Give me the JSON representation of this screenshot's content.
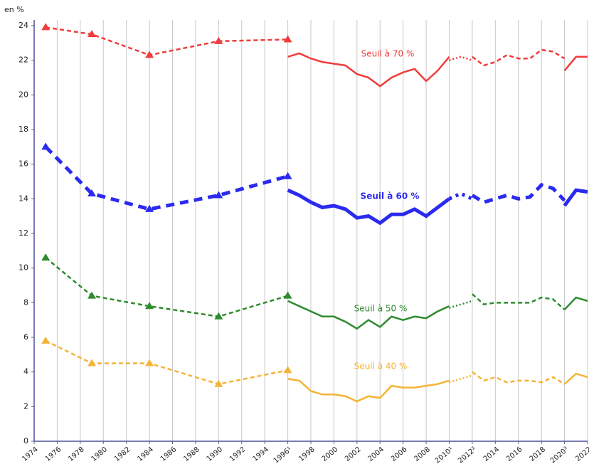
{
  "chart_data": {
    "type": "line",
    "ylabel": "en %",
    "xlim": [
      1974,
      2022
    ],
    "ylim": [
      0,
      24
    ],
    "yticks": [
      0,
      2,
      4,
      6,
      8,
      10,
      12,
      14,
      16,
      18,
      20,
      22,
      24
    ],
    "xticks": [
      1974,
      1976,
      1978,
      1980,
      1982,
      1984,
      1986,
      1988,
      1990,
      1992,
      1994,
      {
        "value": 1996,
        "label": "1996¹"
      },
      1998,
      2000,
      2002,
      2004,
      2006,
      2008,
      {
        "value": 2010,
        "label": "2010¹"
      },
      {
        "value": 2012,
        "label": "2012²"
      },
      2014,
      2016,
      2018,
      {
        "value": 2020,
        "label": "2020³"
      },
      2022
    ],
    "grid": "x",
    "series": [
      {
        "name": "Seuil à 70 %",
        "color": "#f03c3c",
        "width": 2.5,
        "parts": [
          {
            "style": "dashed",
            "markers": true,
            "x": [
              1975,
              1979,
              1984,
              1990,
              1996
            ],
            "values": [
              23.9,
              23.5,
              22.3,
              23.1,
              23.2
            ]
          },
          {
            "style": "solid",
            "x": [
              1996,
              1997,
              1998,
              1999,
              2000,
              2001,
              2002,
              2003,
              2004,
              2005,
              2006,
              2007,
              2008,
              2009,
              2010
            ],
            "values": [
              22.2,
              22.4,
              22.1,
              21.9,
              21.8,
              21.7,
              21.2,
              21.0,
              20.5,
              21.0,
              21.3,
              21.5,
              20.8,
              21.4,
              22.2
            ]
          },
          {
            "style": "dotted",
            "x": [
              2010,
              2011,
              2012
            ],
            "values": [
              22.0,
              22.2,
              22.0
            ]
          },
          {
            "style": "dashed",
            "x": [
              2012,
              2013,
              2014,
              2015,
              2016,
              2017,
              2018,
              2019,
              2020
            ],
            "values": [
              22.2,
              21.7,
              21.9,
              22.3,
              22.1,
              22.1,
              22.6,
              22.5,
              22.1
            ]
          },
          {
            "style": "solid",
            "x": [
              2020,
              2021,
              2022
            ],
            "values": [
              21.4,
              22.2,
              22.2
            ]
          }
        ]
      },
      {
        "name": "Seuil à 60 %",
        "color": "#2a2af0",
        "width": 5,
        "parts": [
          {
            "style": "dashed",
            "markers": true,
            "x": [
              1975,
              1979,
              1984,
              1990,
              1996
            ],
            "values": [
              17.0,
              14.3,
              13.4,
              14.2,
              15.3
            ]
          },
          {
            "style": "solid",
            "x": [
              1996,
              1997,
              1998,
              1999,
              2000,
              2001,
              2002,
              2003,
              2004,
              2005,
              2006,
              2007,
              2008,
              2009,
              2010
            ],
            "values": [
              14.5,
              14.2,
              13.8,
              13.5,
              13.6,
              13.4,
              12.9,
              13.0,
              12.6,
              13.1,
              13.1,
              13.4,
              13.0,
              13.5,
              14.0
            ]
          },
          {
            "style": "dotted",
            "x": [
              2010,
              2011,
              2012
            ],
            "values": [
              14.0,
              14.3,
              14.0
            ]
          },
          {
            "style": "dashed",
            "x": [
              2012,
              2013,
              2014,
              2015,
              2016,
              2017,
              2018,
              2019,
              2020
            ],
            "values": [
              14.2,
              13.8,
              14.0,
              14.2,
              14.0,
              14.1,
              14.8,
              14.6,
              13.9
            ]
          },
          {
            "style": "solid",
            "x": [
              2020,
              2021,
              2022
            ],
            "values": [
              13.6,
              14.5,
              14.4
            ]
          }
        ]
      },
      {
        "name": "Seuil à 50 %",
        "color": "#2e8b2e",
        "width": 2.5,
        "parts": [
          {
            "style": "dashed",
            "markers": true,
            "x": [
              1975,
              1979,
              1984,
              1990,
              1996
            ],
            "values": [
              10.6,
              8.4,
              7.8,
              7.2,
              8.4
            ]
          },
          {
            "style": "solid",
            "x": [
              1996,
              1997,
              1998,
              1999,
              2000,
              2001,
              2002,
              2003,
              2004,
              2005,
              2006,
              2007,
              2008,
              2009,
              2010
            ],
            "values": [
              8.1,
              7.8,
              7.5,
              7.2,
              7.2,
              6.9,
              6.5,
              7.0,
              6.6,
              7.2,
              7.0,
              7.2,
              7.1,
              7.5,
              7.8
            ]
          },
          {
            "style": "dotted",
            "x": [
              2010,
              2011,
              2012
            ],
            "values": [
              7.7,
              7.9,
              8.1
            ]
          },
          {
            "style": "dashed",
            "x": [
              2012,
              2013,
              2014,
              2015,
              2016,
              2017,
              2018,
              2019,
              2020
            ],
            "values": [
              8.5,
              7.9,
              8.0,
              8.0,
              8.0,
              8.0,
              8.3,
              8.2,
              7.6
            ]
          },
          {
            "style": "solid",
            "x": [
              2020,
              2021,
              2022
            ],
            "values": [
              7.6,
              8.3,
              8.1
            ]
          }
        ]
      },
      {
        "name": "Seuil à 40 %",
        "color": "#f5b335",
        "width": 2.5,
        "parts": [
          {
            "style": "dashed",
            "markers": true,
            "x": [
              1975,
              1979,
              1984,
              1990,
              1996
            ],
            "values": [
              5.8,
              4.5,
              4.5,
              3.3,
              4.1
            ]
          },
          {
            "style": "solid",
            "x": [
              1996,
              1997,
              1998,
              1999,
              2000,
              2001,
              2002,
              2003,
              2004,
              2005,
              2006,
              2007,
              2008,
              2009,
              2010
            ],
            "values": [
              3.6,
              3.5,
              2.9,
              2.7,
              2.7,
              2.6,
              2.3,
              2.6,
              2.5,
              3.2,
              3.1,
              3.1,
              3.2,
              3.3,
              3.5
            ]
          },
          {
            "style": "dotted",
            "x": [
              2010,
              2011,
              2012
            ],
            "values": [
              3.4,
              3.6,
              3.8
            ]
          },
          {
            "style": "dashed",
            "x": [
              2012,
              2013,
              2014,
              2015,
              2016,
              2017,
              2018,
              2019,
              2020
            ],
            "values": [
              4.0,
              3.5,
              3.7,
              3.4,
              3.5,
              3.5,
              3.4,
              3.7,
              3.3
            ]
          },
          {
            "style": "solid",
            "x": [
              2020,
              2021,
              2022
            ],
            "values": [
              3.3,
              3.9,
              3.7
            ]
          }
        ]
      }
    ]
  }
}
